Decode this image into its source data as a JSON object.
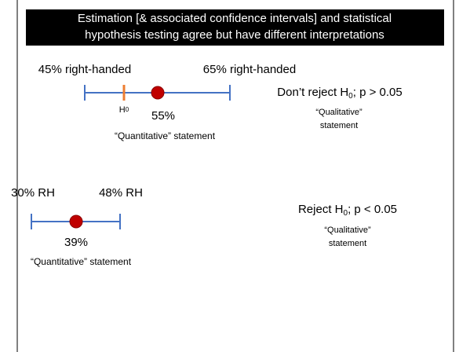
{
  "title": {
    "lines": [
      "Estimation [& associated confidence intervals] and statistical",
      "hypothesis testing agree but have different interpretations"
    ]
  },
  "examples": [
    {
      "lower": "45% right-handed",
      "upper": "65% right-handed",
      "h0": {
        "main": "H",
        "sub": "0"
      },
      "estimate": "55%",
      "caption": "“Quantitative” statement",
      "decision": {
        "pre": "Don’t reject H",
        "sub": "0",
        "post": "; p > 0.05"
      },
      "interpretation": [
        "“Qualitative”",
        "statement"
      ]
    },
    {
      "lower": "30% RH",
      "upper": "48% RH",
      "estimate": "39%",
      "caption": "“Quantitative” statement",
      "decision": {
        "pre": "Reject H",
        "sub": "0",
        "post": "; p < 0.05"
      },
      "interpretation": [
        "“Qualitative”",
        "statement"
      ]
    }
  ]
}
